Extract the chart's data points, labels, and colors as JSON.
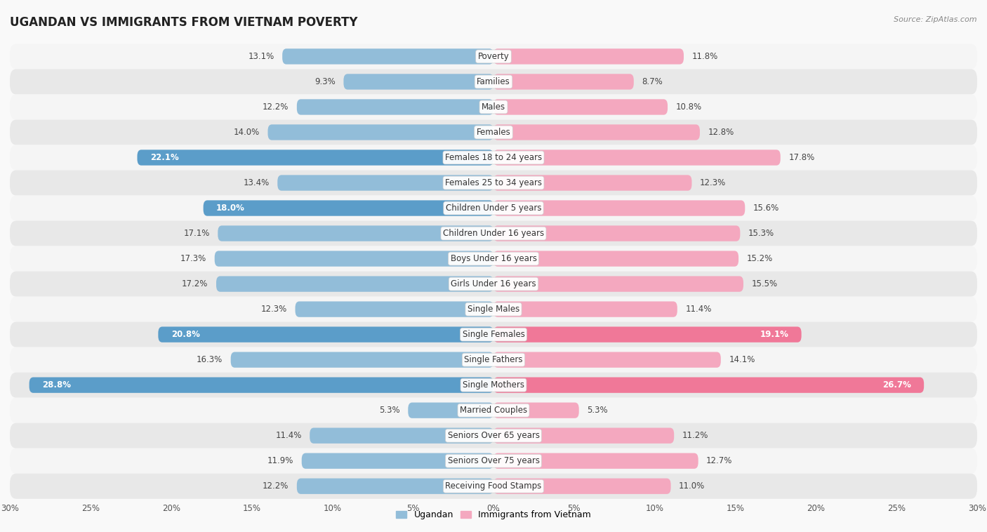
{
  "title": "UGANDAN VS IMMIGRANTS FROM VIETNAM POVERTY",
  "source": "Source: ZipAtlas.com",
  "categories": [
    "Poverty",
    "Families",
    "Males",
    "Females",
    "Females 18 to 24 years",
    "Females 25 to 34 years",
    "Children Under 5 years",
    "Children Under 16 years",
    "Boys Under 16 years",
    "Girls Under 16 years",
    "Single Males",
    "Single Females",
    "Single Fathers",
    "Single Mothers",
    "Married Couples",
    "Seniors Over 65 years",
    "Seniors Over 75 years",
    "Receiving Food Stamps"
  ],
  "ugandan": [
    13.1,
    9.3,
    12.2,
    14.0,
    22.1,
    13.4,
    18.0,
    17.1,
    17.3,
    17.2,
    12.3,
    20.8,
    16.3,
    28.8,
    5.3,
    11.4,
    11.9,
    12.2
  ],
  "vietnam": [
    11.8,
    8.7,
    10.8,
    12.8,
    17.8,
    12.3,
    15.6,
    15.3,
    15.2,
    15.5,
    11.4,
    19.1,
    14.1,
    26.7,
    5.3,
    11.2,
    12.7,
    11.0
  ],
  "ugandan_color": "#92bdd9",
  "vietnam_color": "#f4a8bf",
  "ugandan_highlight_indices": [
    4,
    6,
    11,
    13
  ],
  "vietnam_highlight_indices": [
    11,
    13
  ],
  "ugandan_highlight_color": "#5b9dc9",
  "vietnam_highlight_color": "#f07898",
  "row_even_color": "#f5f5f5",
  "row_odd_color": "#e8e8e8",
  "background_color": "#f9f9f9",
  "max_value": 30.0,
  "legend_ugandan": "Ugandan",
  "legend_vietnam": "Immigrants from Vietnam",
  "bar_height": 0.62
}
